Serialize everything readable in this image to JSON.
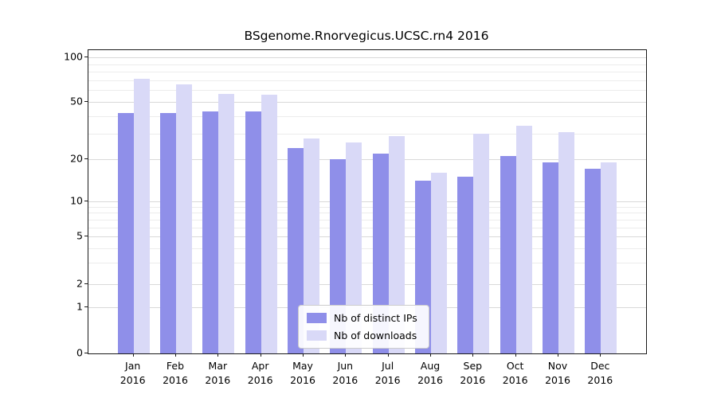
{
  "figure": {
    "title": "BSgenome.Rnorvegicus.UCSC.rn4 2016"
  },
  "chart_data": {
    "type": "bar",
    "title": "BSgenome.Rnorvegicus.UCSC.rn4 2016",
    "categories": [
      "Jan",
      "Feb",
      "Mar",
      "Apr",
      "May",
      "Jun",
      "Jul",
      "Aug",
      "Sep",
      "Oct",
      "Nov",
      "Dec"
    ],
    "category_year": "2016",
    "series": [
      {
        "name": "Nb of distinct IPs",
        "color": "#8f8fe9",
        "values": [
          42,
          42,
          43,
          43,
          24,
          20,
          22,
          14,
          15,
          21,
          19,
          17
        ]
      },
      {
        "name": "Nb of downloads",
        "color": "#d9d9f7",
        "values": [
          72,
          66,
          57,
          56,
          28,
          26,
          29,
          16,
          30,
          34,
          31,
          19
        ]
      }
    ],
    "y_ticks": [
      0,
      1,
      2,
      5,
      10,
      20,
      50,
      100
    ],
    "y_minor_ticks": [
      3,
      4,
      6,
      7,
      8,
      9,
      30,
      40,
      60,
      70,
      80,
      90
    ],
    "y_scale": "pseudo-log",
    "ylim": [
      0,
      115
    ],
    "xlabel": "",
    "ylabel": "",
    "grid": true,
    "legend_position": "bottom-center"
  },
  "colors": {
    "distinct_ips": "#8f8fe9",
    "downloads": "#d9d9f7",
    "grid_major": "#d9d9d9",
    "grid_minor": "#ececec",
    "axis": "#1a1a1a",
    "background": "#ffffff"
  }
}
